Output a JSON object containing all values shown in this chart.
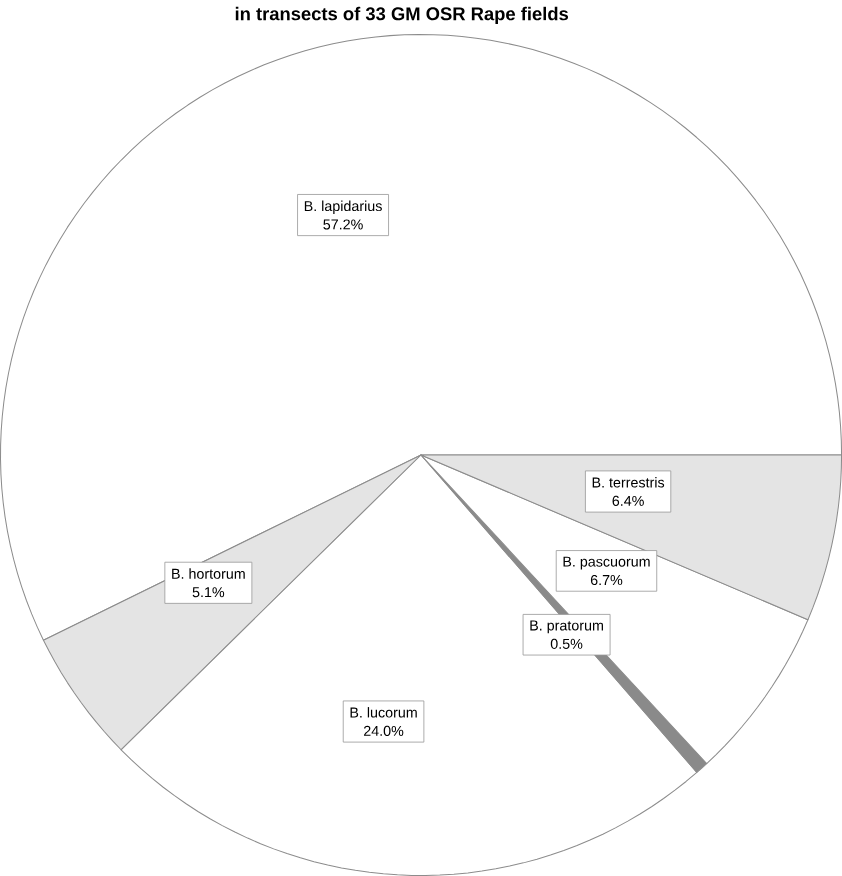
{
  "chart_data": {
    "type": "pie",
    "title": "in transects of 33 GM OSR Rape fields",
    "categories": [
      "B. lapidarius",
      "B. hortorum",
      "B. lucorum",
      "B. pratorum",
      "B. pascuorum",
      "B. terrestris"
    ],
    "values": [
      57.2,
      5.1,
      24.0,
      0.5,
      6.7,
      6.4
    ],
    "value_labels": [
      "57.2%",
      "5.1%",
      "24.0%",
      "0.5%",
      "6.7%",
      "6.4%"
    ],
    "colors": [
      "#ffffff",
      "#e4e4e4",
      "#ffffff",
      "#8a8a8a",
      "#ffffff",
      "#e4e4e4"
    ]
  }
}
